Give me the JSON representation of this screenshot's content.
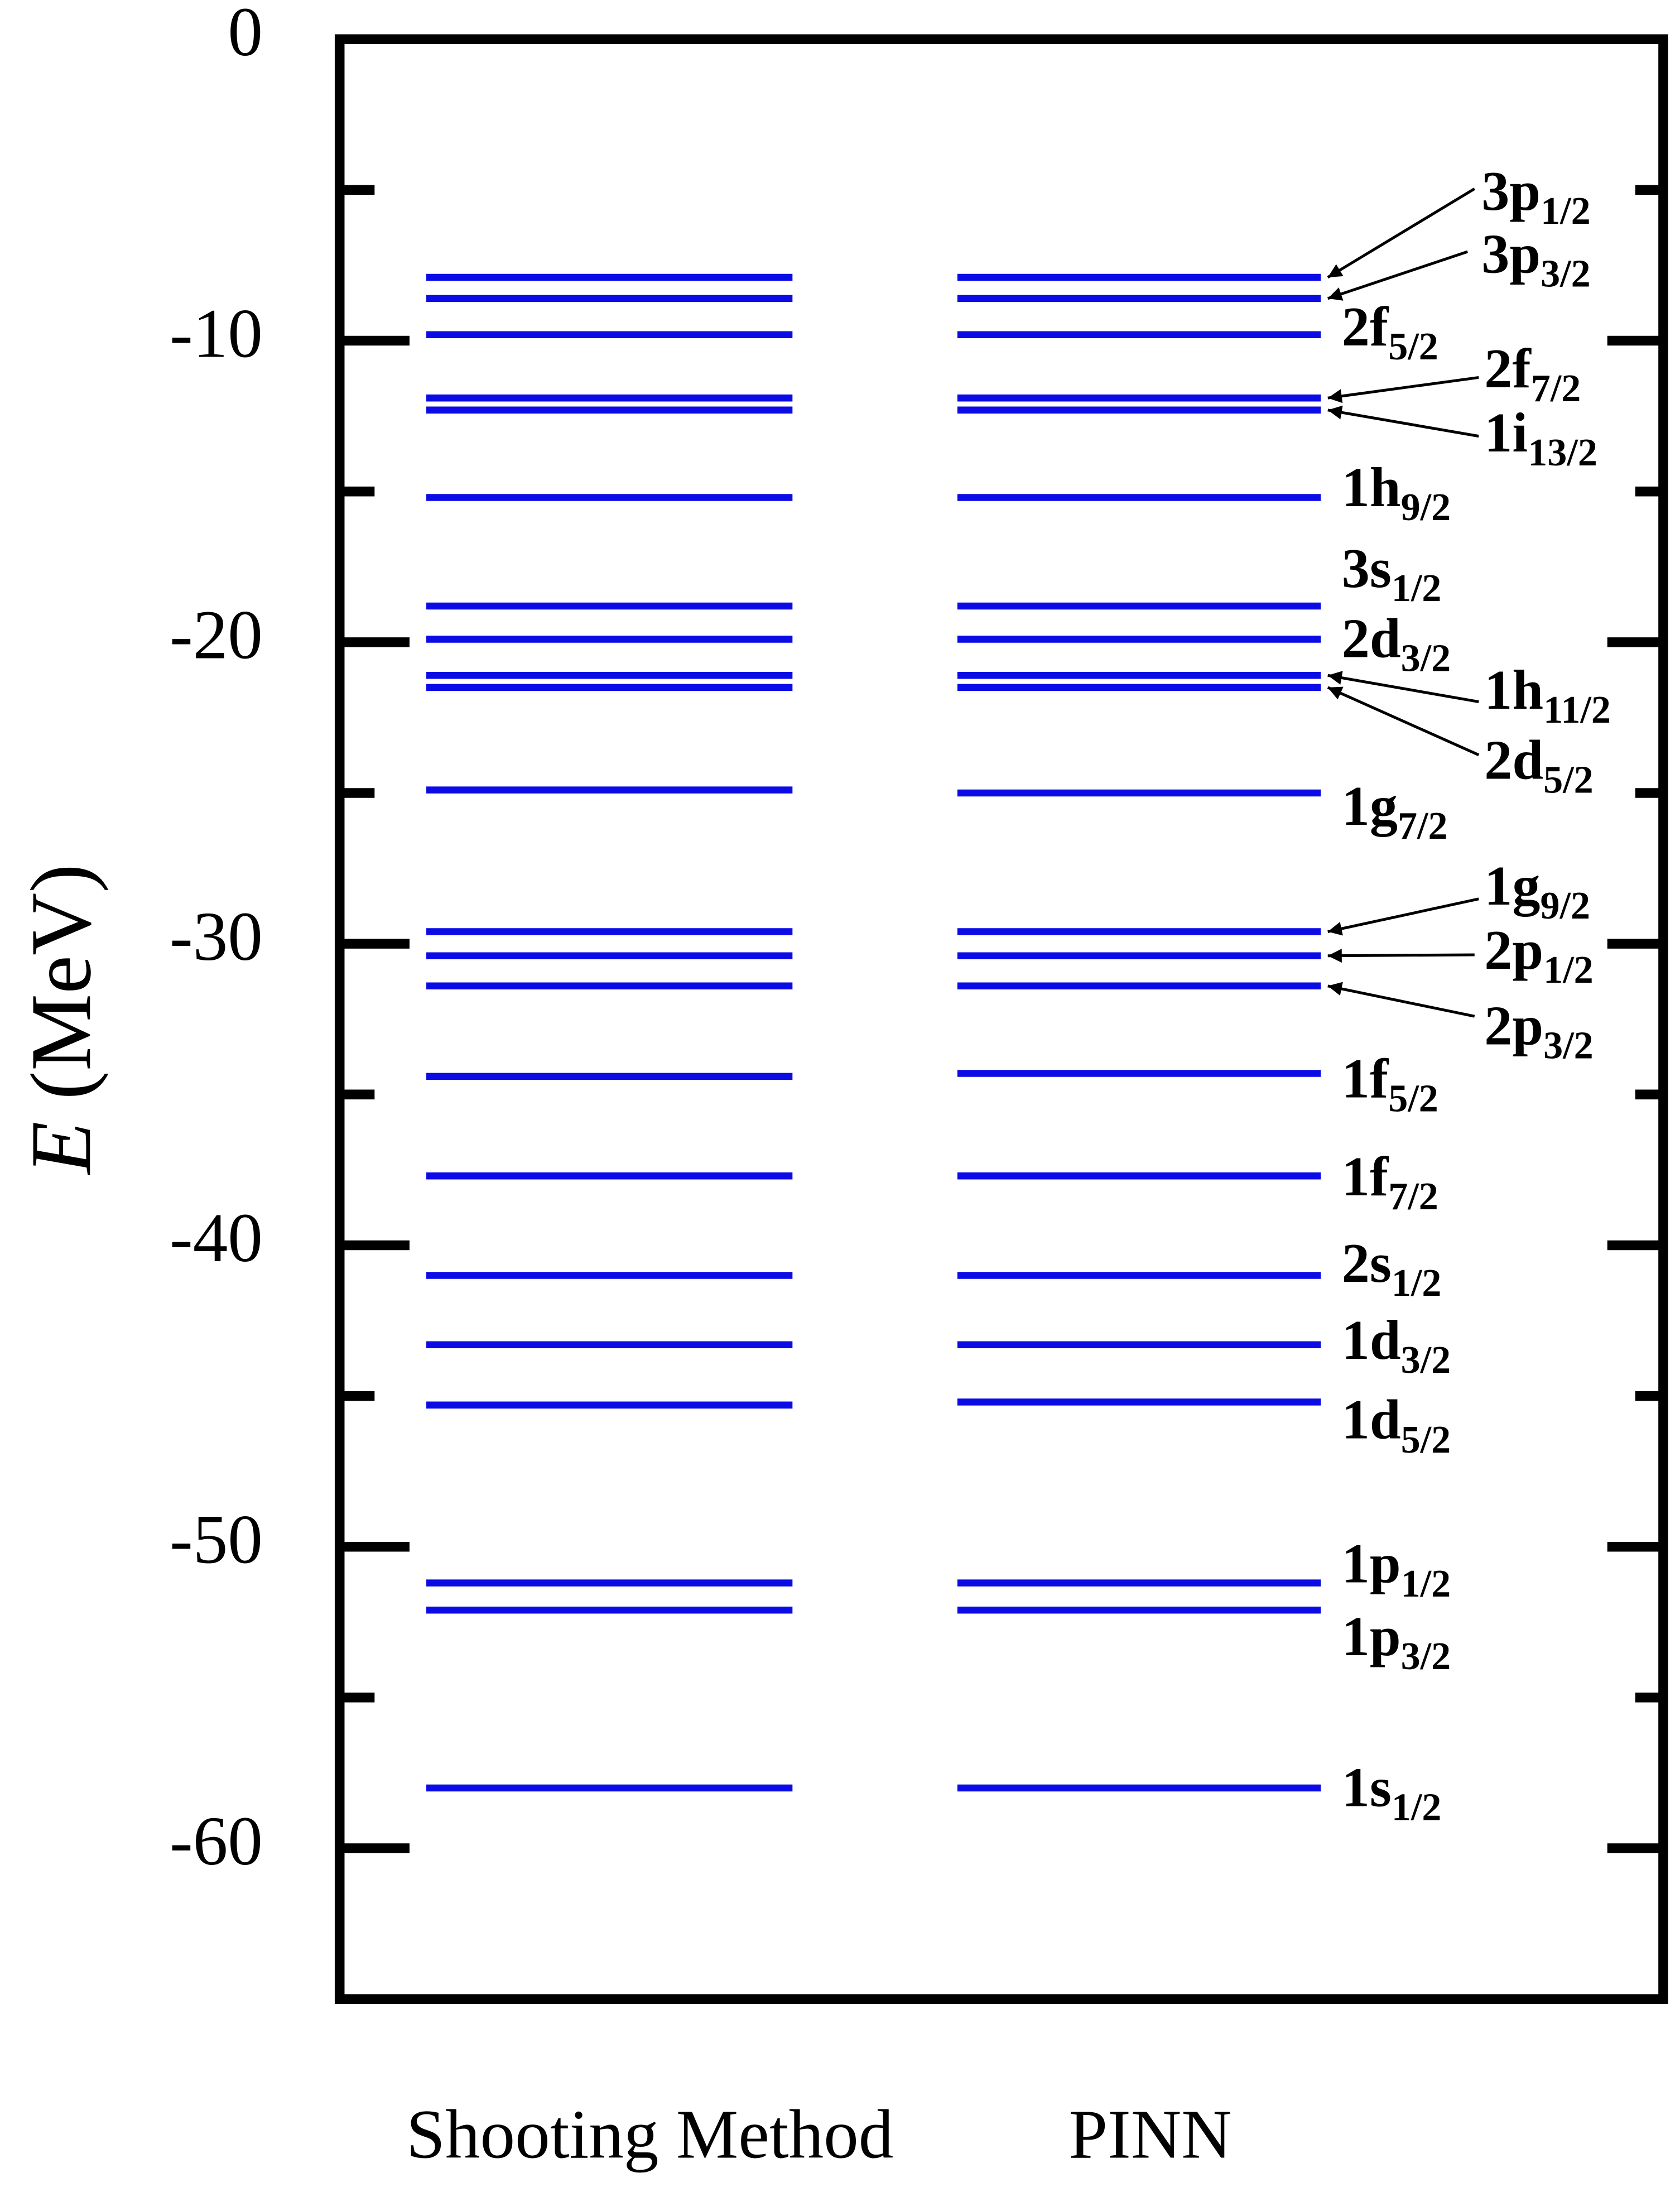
{
  "chart_data": {
    "type": "level",
    "y_label_symbol": "E",
    "y_label_unit": "(MeV)",
    "ylim": [
      -65,
      0
    ],
    "yticks": [
      0,
      -10,
      -20,
      -30,
      -40,
      -50,
      -60
    ],
    "minor_yticks": [
      -5,
      -15,
      -25,
      -35,
      -45,
      -55
    ],
    "levels": [
      {
        "main": "3p",
        "sub": "1/2"
      },
      {
        "main": "3p",
        "sub": "3/2"
      },
      {
        "main": "2f",
        "sub": "5/2"
      },
      {
        "main": "2f",
        "sub": "7/2"
      },
      {
        "main": "1i",
        "sub": "13/2"
      },
      {
        "main": "1h",
        "sub": "9/2"
      },
      {
        "main": "3s",
        "sub": "1/2"
      },
      {
        "main": "2d",
        "sub": "3/2"
      },
      {
        "main": "1h",
        "sub": "11/2"
      },
      {
        "main": "2d",
        "sub": "5/2"
      },
      {
        "main": "1g",
        "sub": "7/2"
      },
      {
        "main": "1g",
        "sub": "9/2"
      },
      {
        "main": "2p",
        "sub": "1/2"
      },
      {
        "main": "2p",
        "sub": "3/2"
      },
      {
        "main": "1f",
        "sub": "5/2"
      },
      {
        "main": "1f",
        "sub": "7/2"
      },
      {
        "main": "2s",
        "sub": "1/2"
      },
      {
        "main": "1d",
        "sub": "3/2"
      },
      {
        "main": "1d",
        "sub": "5/2"
      },
      {
        "main": "1p",
        "sub": "1/2"
      },
      {
        "main": "1p",
        "sub": "3/2"
      },
      {
        "main": "1s",
        "sub": "1/2"
      }
    ],
    "series": [
      {
        "name": "Shooting Method",
        "color": "#0b0be6",
        "values": [
          -7.9,
          -8.6,
          -9.8,
          -11.9,
          -12.3,
          -15.2,
          -18.8,
          -19.9,
          -21.1,
          -21.5,
          -24.9,
          -29.6,
          -30.4,
          -31.4,
          -34.4,
          -37.7,
          -41.0,
          -43.3,
          -45.3,
          -51.2,
          -52.1,
          -58.0
        ]
      },
      {
        "name": "PINN",
        "color": "#0b0be6",
        "values": [
          -7.9,
          -8.6,
          -9.8,
          -11.9,
          -12.3,
          -15.2,
          -18.8,
          -19.9,
          -21.1,
          -21.5,
          -25.0,
          -29.6,
          -30.4,
          -31.4,
          -34.3,
          -37.7,
          -41.0,
          -43.3,
          -45.2,
          -51.2,
          -52.1,
          -58.0
        ]
      }
    ]
  }
}
